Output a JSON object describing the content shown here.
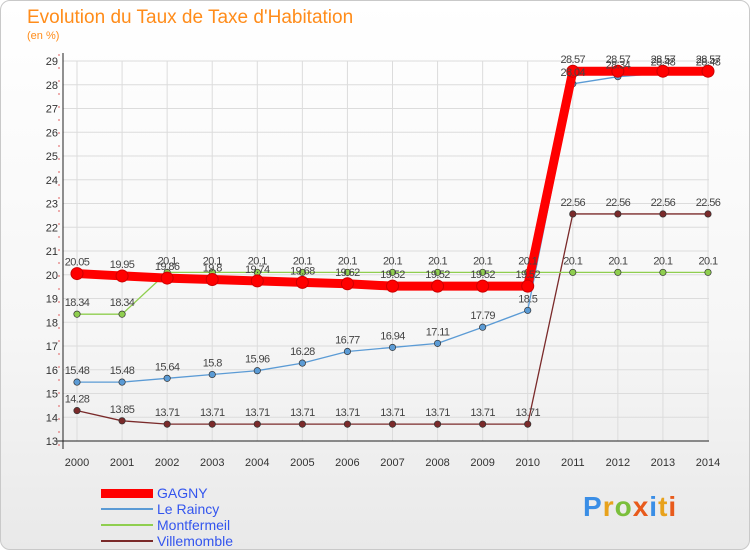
{
  "header": {
    "title": "Evolution du Taux de Taxe d'Habitation",
    "unit": "(en %)"
  },
  "brand": {
    "text": "Proxiti",
    "colors": [
      "#3a8ee6",
      "#e8a21c",
      "#7bbf3c",
      "#e85b1c",
      "#3a8ee6",
      "#e8a21c",
      "#e85b1c"
    ]
  },
  "chart_data": {
    "type": "line",
    "title": "Evolution du Taux de Taxe d'Habitation",
    "ylabel": "(en %)",
    "x": [
      2000,
      2001,
      2002,
      2003,
      2004,
      2005,
      2006,
      2007,
      2008,
      2009,
      2010,
      2011,
      2012,
      2013,
      2014
    ],
    "ylim": [
      13,
      29
    ],
    "yticks": [
      13,
      14,
      15,
      16,
      17,
      18,
      19,
      20,
      21,
      22,
      23,
      24,
      25,
      26,
      27,
      28,
      29
    ],
    "grid": true,
    "legend_position": "bottom-left",
    "series": [
      {
        "name": "GAGNY",
        "color": "#ff0000",
        "values": [
          20.05,
          19.95,
          19.86,
          19.8,
          19.74,
          19.68,
          19.62,
          19.52,
          19.52,
          19.52,
          19.52,
          28.57,
          28.57,
          28.57,
          28.57
        ]
      },
      {
        "name": "Le Raincy",
        "color": "#5b9bd5",
        "values": [
          15.48,
          15.48,
          15.64,
          15.8,
          15.96,
          16.28,
          16.77,
          16.94,
          17.11,
          17.79,
          18.5,
          28.04,
          28.34,
          28.48,
          28.48
        ]
      },
      {
        "name": "Montfermeil",
        "color": "#8fce4f",
        "values": [
          18.34,
          18.34,
          20.1,
          20.1,
          20.1,
          20.1,
          20.1,
          20.1,
          20.1,
          20.1,
          20.1,
          20.1,
          20.1,
          20.1,
          20.1
        ]
      },
      {
        "name": "Villemomble",
        "color": "#7a2a2a",
        "values": [
          14.28,
          13.85,
          13.71,
          13.71,
          13.71,
          13.71,
          13.71,
          13.71,
          13.71,
          13.71,
          13.71,
          22.56,
          22.56,
          22.56,
          22.56
        ]
      }
    ]
  }
}
